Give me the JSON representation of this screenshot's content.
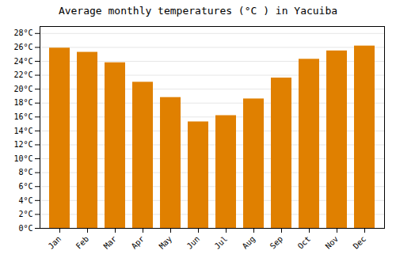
{
  "chart_data": {
    "type": "bar",
    "title": "Average monthly temperatures (°C ) in Yacuiba",
    "categories": [
      "Jan",
      "Feb",
      "Mar",
      "Apr",
      "May",
      "Jun",
      "Jul",
      "Aug",
      "Sep",
      "Oct",
      "Nov",
      "Dec"
    ],
    "values": [
      25.9,
      25.3,
      23.8,
      21.0,
      18.8,
      15.3,
      16.2,
      18.6,
      21.6,
      24.3,
      25.5,
      26.2
    ],
    "color": "#E08000",
    "ylim": [
      0,
      29
    ],
    "yticks": [
      {
        "value": 0,
        "label": "0°C"
      },
      {
        "value": 2,
        "label": "2°C"
      },
      {
        "value": 4,
        "label": "4°C"
      },
      {
        "value": 6,
        "label": "6°C"
      },
      {
        "value": 8,
        "label": "8°C"
      },
      {
        "value": 10,
        "label": "10°C"
      },
      {
        "value": 12,
        "label": "12°C"
      },
      {
        "value": 14,
        "label": "14°C"
      },
      {
        "value": 16,
        "label": "16°C"
      },
      {
        "value": 18,
        "label": "18°C"
      },
      {
        "value": 20,
        "label": "20°C"
      },
      {
        "value": 22,
        "label": "22°C"
      },
      {
        "value": 24,
        "label": "24°C"
      },
      {
        "value": 26,
        "label": "26°C"
      },
      {
        "value": 28,
        "label": "28°C"
      }
    ],
    "grid": true
  }
}
